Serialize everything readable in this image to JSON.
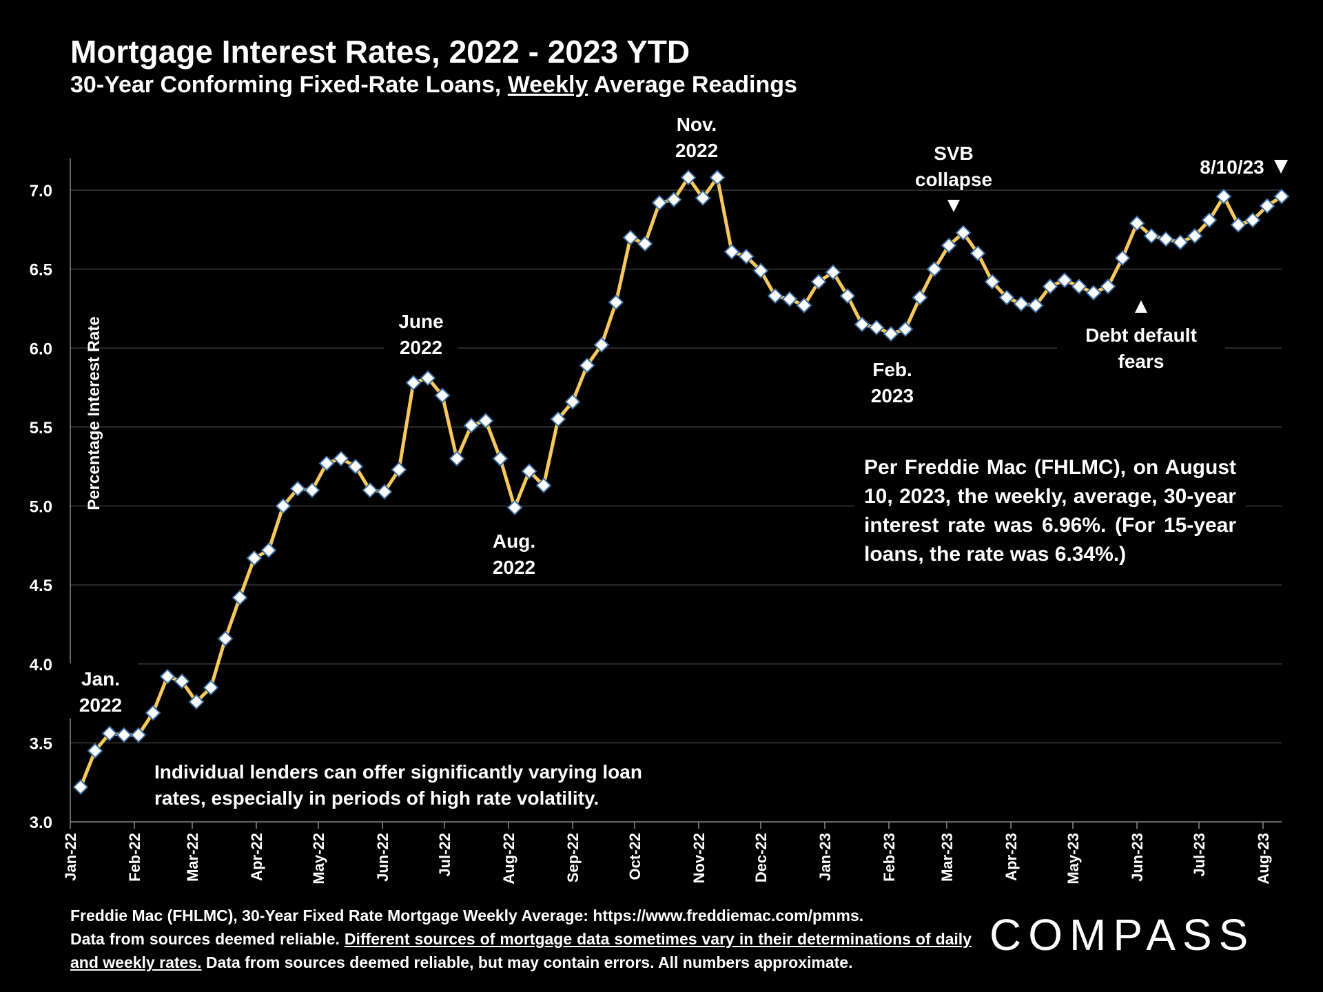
{
  "header": {
    "title": "Mortgage Interest Rates, 2022 - 2023 YTD",
    "subtitle_pre": "30-Year Conforming Fixed-Rate Loans, ",
    "subtitle_underlined": "Weekly",
    "subtitle_post": " Average Readings"
  },
  "colors": {
    "background": "#000000",
    "line": "#F7C95C",
    "marker_fill": "#FFFFFF",
    "marker_stroke": "#3A6EA5",
    "grid": "#3A3A3A",
    "text": "#FFFFFF"
  },
  "chart_data": {
    "type": "line",
    "ylabel": "Percentage Interest  Rate",
    "ylim": [
      3.0,
      7.2
    ],
    "yticks": [
      "3.0",
      "3.5",
      "4.0",
      "4.5",
      "5.0",
      "5.5",
      "6.0",
      "6.5",
      "7.0"
    ],
    "xticks": [
      "Jan-22",
      "Feb-22",
      "Mar-22",
      "Apr-22",
      "May-22",
      "Jun-22",
      "Jul-22",
      "Aug-22",
      "Sep-22",
      "Oct-22",
      "Nov-22",
      "Dec-22",
      "Jan-23",
      "Feb-23",
      "Mar-23",
      "Apr-23",
      "May-23",
      "Jun-23",
      "Jul-23",
      "Aug-23"
    ],
    "grid": "horizontal",
    "x_start": "2022-01-06",
    "series": [
      {
        "values": [
          3.22,
          3.45,
          3.56,
          3.55,
          3.55,
          3.69,
          3.92,
          3.89,
          3.76,
          3.85,
          4.16,
          4.42,
          4.67,
          4.72,
          5.0,
          5.11,
          5.1,
          5.27,
          5.3,
          5.25,
          5.1,
          5.09,
          5.23,
          5.78,
          5.81,
          5.7,
          5.3,
          5.51,
          5.54,
          5.3,
          4.99,
          5.22,
          5.13,
          5.55,
          5.66,
          5.89,
          6.02,
          6.29,
          6.7,
          6.66,
          6.92,
          6.94,
          7.08,
          6.95,
          7.08,
          6.61,
          6.58,
          6.49,
          6.33,
          6.31,
          6.27,
          6.42,
          6.48,
          6.33,
          6.15,
          6.13,
          6.09,
          6.12,
          6.32,
          6.5,
          6.65,
          6.73,
          6.6,
          6.42,
          6.32,
          6.28,
          6.27,
          6.39,
          6.43,
          6.39,
          6.35,
          6.39,
          6.57,
          6.79,
          6.71,
          6.69,
          6.67,
          6.71,
          6.81,
          6.96,
          6.78,
          6.81,
          6.9,
          6.96
        ]
      }
    ],
    "annotations": [
      {
        "line1": "Jan.",
        "line2": "2022"
      },
      {
        "line1": "June",
        "line2": "2022"
      },
      {
        "line1": "Aug.",
        "line2": "2022"
      },
      {
        "line1": "Nov.",
        "line2": "2022"
      },
      {
        "line1": "Feb.",
        "line2": "2023"
      },
      {
        "line1": "SVB",
        "line2": "collapse"
      },
      {
        "line1": "Debt default",
        "line2": "fears"
      },
      {
        "line1": "8/10/23"
      }
    ]
  },
  "callout": {
    "text": "Per Freddie Mac (FHLMC), on August 10, 2023, the weekly, average, 30-year interest rate was 6.96%. (For 15-year loans, the rate was 6.34%.)"
  },
  "note": {
    "text": "Individual lenders can offer significantly varying loan rates, especially in periods of high rate volatility."
  },
  "footer": {
    "line1": "Freddie Mac (FHLMC), 30-Year Fixed Rate Mortgage Weekly Average:  https://www.freddiemac.com/pmms.",
    "line2_pre": "Data from sources deemed reliable. ",
    "line2_underlined": "Different sources of mortgage data sometimes vary in their determinations of daily and weekly rates.",
    "line2_post": " Data from sources deemed reliable, but may contain errors. All numbers approximate."
  },
  "logo": {
    "text": "COMPASS"
  }
}
